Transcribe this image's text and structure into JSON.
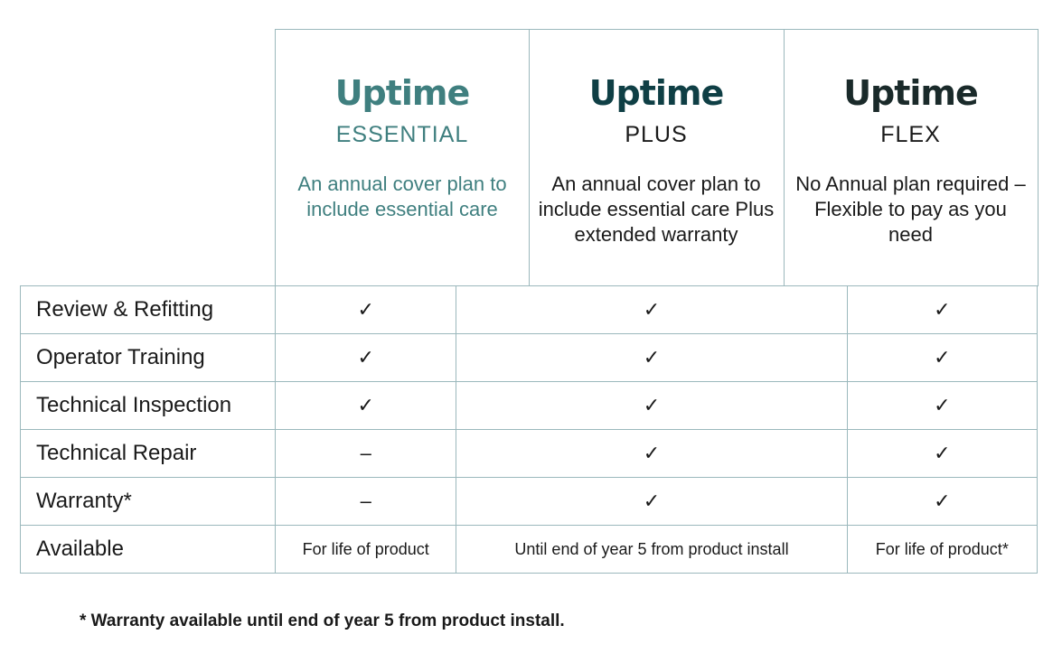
{
  "plans": [
    {
      "brand": "Uptime",
      "tier": "ESSENTIAL",
      "description": "An annual cover plan to include essential care",
      "color": "#3f7f7f"
    },
    {
      "brand": "Uptime",
      "tier": "PLUS",
      "description": "An annual cover plan to include essential care Plus extended warranty",
      "color": "#0f3f45"
    },
    {
      "brand": "Uptime",
      "tier": "FLEX",
      "description": "No Annual plan required – Flexible to pay as you need",
      "color": "#1a2a2a"
    }
  ],
  "rows": [
    {
      "label": "Review & Refitting",
      "values": [
        "✓",
        "✓",
        "✓"
      ]
    },
    {
      "label": "Operator Training",
      "values": [
        "✓",
        "✓",
        "✓"
      ]
    },
    {
      "label": "Technical Inspection",
      "values": [
        "✓",
        "✓",
        "✓"
      ]
    },
    {
      "label": "Technical Repair",
      "values": [
        "–",
        "✓",
        "✓"
      ]
    },
    {
      "label": "Warranty*",
      "values": [
        "–",
        "✓",
        "✓"
      ]
    },
    {
      "label": "Available",
      "values": [
        "For life of product",
        "Until end of year 5 from product install",
        "For life of product*"
      ]
    }
  ],
  "footnote": "* Warranty available until end of year 5 from product install."
}
